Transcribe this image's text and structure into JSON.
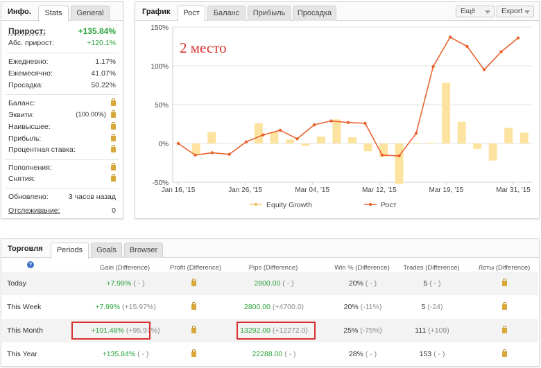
{
  "info": {
    "tabs": [
      "Инфо.",
      "Stats",
      "General"
    ],
    "gain_label": "Прирост:",
    "gain_value": "+135.84%",
    "abs_gain_label": "Абс. прирост:",
    "abs_gain_value": "+120.1%",
    "daily_label": "Ежедневно:",
    "daily_value": "1.17%",
    "monthly_label": "Ежемесячно:",
    "monthly_value": "41.07%",
    "drawdown_label": "Просадка:",
    "drawdown_value": "50.22%",
    "balance_label": "Баланс:",
    "equity_label": "Эквити:",
    "equity_value": "(100.00%)",
    "highest_label": "Наивысшее:",
    "profit_label": "Прибыль:",
    "interest_label": "Процентная ставка:",
    "deposits_label": "Пополнения:",
    "withdrawals_label": "Снятия:",
    "updated_label": "Обновлено:",
    "updated_value": "3 часов назад",
    "tracking_label": "Отслеживание:",
    "tracking_value": "0"
  },
  "chart_panel": {
    "title": "График",
    "tabs": [
      "Рост",
      "Баланс",
      "Прибыль",
      "Просадка"
    ],
    "more_label": "Ещё",
    "export_label": "Export",
    "annotation": "2 место"
  },
  "chart_data": {
    "type": "line",
    "x_ticks": [
      "Jan 16, '15",
      "Jan 26, '15",
      "Mar 04, '15",
      "Mar 12, '15",
      "Mar 19, '15",
      "Mar 31, '15"
    ],
    "y_ticks": [
      "150%",
      "100%",
      "50%",
      "0%",
      "-50%"
    ],
    "ylim": [
      -50,
      150
    ],
    "grid": true,
    "legend_position": "bottom",
    "series": [
      {
        "name": "Equity Growth",
        "type": "bar",
        "color": "#fde3a0",
        "values": [
          null,
          -14,
          15,
          null,
          null,
          26,
          15,
          5,
          -3,
          9,
          31,
          8,
          -10,
          -17,
          -52,
          0,
          1,
          78,
          28,
          -7,
          -22,
          20,
          14
        ]
      },
      {
        "name": "Рост",
        "type": "line",
        "color": "#e8622f",
        "values": [
          0,
          -15,
          -12,
          -14,
          2,
          11,
          17,
          6,
          24,
          29,
          27,
          26,
          -15,
          -16,
          13,
          99,
          137,
          125,
          95,
          118,
          136
        ]
      }
    ]
  },
  "trading": {
    "title": "Торговля",
    "tabs": [
      "Periods",
      "Goals",
      "Browser"
    ],
    "help_icon": "?",
    "columns": [
      "Gain (Difference)",
      "Profit (Difference)",
      "Pips (Difference)",
      "Win % (Difference)",
      "Trades (Difference)",
      "Лоты (Difference)"
    ],
    "rows": [
      {
        "period": "Today",
        "gain": "+7.99%",
        "gain_diff": "( - )",
        "pips": "2800.00",
        "pips_diff": "( - )",
        "win": "20%",
        "win_diff": "( - )",
        "trades": "5",
        "trades_diff": "( - )"
      },
      {
        "period": "This Week",
        "gain": "+7.99%",
        "gain_diff": "(+15.97%)",
        "pips": "2800.00",
        "pips_diff": "(+4700.0)",
        "win": "20%",
        "win_diff": "(-11%)",
        "trades": "5",
        "trades_diff": "(-24)"
      },
      {
        "period": "This Month",
        "gain": "+101.48%",
        "gain_diff": "(+95.97%)",
        "pips": "13292.00",
        "pips_diff": "(+12272.0)",
        "win": "25%",
        "win_diff": "(-75%)",
        "trades": "111",
        "trades_diff": "(+109)"
      },
      {
        "period": "This Year",
        "gain": "+135.84%",
        "gain_diff": "( - )",
        "pips": "22288.00",
        "pips_diff": "( - )",
        "win": "28%",
        "win_diff": "( - )",
        "trades": "153",
        "trades_diff": "( - )"
      }
    ]
  }
}
